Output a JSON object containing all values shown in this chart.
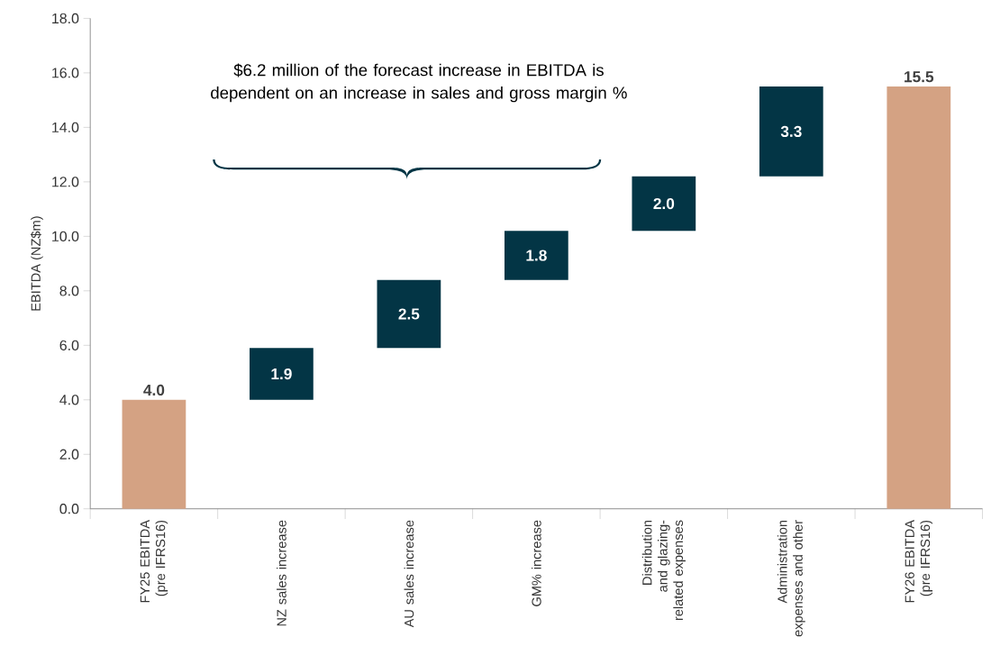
{
  "chart_data": {
    "type": "bar",
    "ylabel": "EBITDA (NZ$m)",
    "categories": [
      "FY25 EBITDA (pre IFRS16)",
      "NZ sales increase",
      "AU sales increase",
      "GM% increase",
      "Distribution and glazing-related expenses",
      "Administration expenses and other",
      "FY26 EBITDA (pre IFRS16)"
    ],
    "values": [
      4.0,
      1.9,
      2.5,
      1.8,
      2.0,
      3.3,
      15.5
    ],
    "base": [
      0,
      4.0,
      5.9,
      8.4,
      10.2,
      12.2,
      0
    ],
    "colors": [
      "#d4a283",
      "#033545",
      "#033545",
      "#033545",
      "#033545",
      "#033545",
      "#d4a283"
    ],
    "value_labels": [
      "4.0",
      "1.9",
      "2.5",
      "1.8",
      "2.0",
      "3.3",
      "15.5"
    ],
    "ylim": [
      0,
      18
    ],
    "yticks": [
      {
        "value": 0,
        "label": "0.0"
      },
      {
        "value": 2,
        "label": "2.0"
      },
      {
        "value": 4,
        "label": "4.0"
      },
      {
        "value": 6,
        "label": "6.0"
      },
      {
        "value": 8,
        "label": "8.0"
      },
      {
        "value": 10,
        "label": "10.0"
      },
      {
        "value": 12,
        "label": "12.0"
      },
      {
        "value": 14,
        "label": "14.0"
      },
      {
        "value": 16,
        "label": "16.0"
      },
      {
        "value": 18,
        "label": "18.0"
      }
    ],
    "annotations": [
      "$6.2 million of the forecast increase in EBITDA is dependent on an increase in sales and gross margin %"
    ],
    "grid": false
  }
}
